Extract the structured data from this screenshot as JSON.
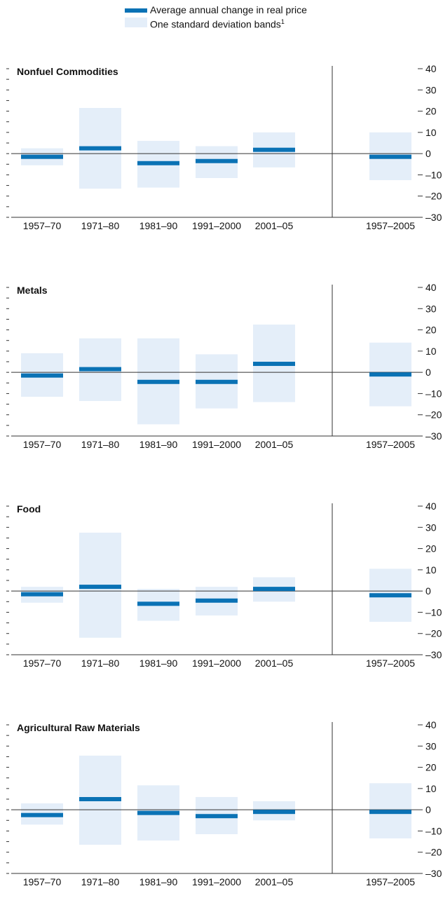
{
  "legend": {
    "line_label": "Average annual change in real price",
    "band_label": "One standard deviation bands",
    "band_footnote": "1"
  },
  "colors": {
    "average_bar": "#0a72b5",
    "band": "#e4eef9",
    "axis": "#333333"
  },
  "chart_data": [
    {
      "type": "bar",
      "title": "Nonfuel Commodities",
      "categories": [
        "1957–70",
        "1971–80",
        "1981–90",
        "1991–2000",
        "2001–05",
        "1957–2005"
      ],
      "values": [
        -1.5,
        2.5,
        -4.5,
        -3.5,
        1.8,
        -1.5
      ],
      "band_low": [
        -5.5,
        -16.5,
        -16.0,
        -11.5,
        -6.5,
        -12.5
      ],
      "band_high": [
        2.5,
        21.5,
        6.0,
        3.5,
        10.0,
        10.0
      ],
      "ylim": [
        -30,
        40
      ],
      "yticks": [
        -30,
        -20,
        -10,
        0,
        10,
        20,
        30,
        40
      ],
      "ytick_labels": [
        "–30",
        "–20",
        "–10",
        "0",
        "10",
        "20",
        "30",
        "40"
      ]
    },
    {
      "type": "bar",
      "title": "Metals",
      "categories": [
        "1957–70",
        "1971–80",
        "1981–90",
        "1991–2000",
        "2001–05",
        "1957–2005"
      ],
      "values": [
        -1.5,
        1.5,
        -4.5,
        -4.5,
        4.0,
        -1.0
      ],
      "band_low": [
        -11.5,
        -13.5,
        -24.5,
        -17.0,
        -14.0,
        -16.0
      ],
      "band_high": [
        9.0,
        16.0,
        16.0,
        8.5,
        22.5,
        14.0
      ],
      "ylim": [
        -30,
        40
      ],
      "yticks": [
        -30,
        -20,
        -10,
        0,
        10,
        20,
        30,
        40
      ],
      "ytick_labels": [
        "–30",
        "–20",
        "–10",
        "0",
        "10",
        "20",
        "30",
        "40"
      ]
    },
    {
      "type": "bar",
      "title": "Food",
      "categories": [
        "1957–70",
        "1971–80",
        "1981–90",
        "1991–2000",
        "2001–05",
        "1957–2005"
      ],
      "values": [
        -1.5,
        2.0,
        -6.0,
        -4.5,
        1.0,
        -2.0
      ],
      "band_low": [
        -5.5,
        -22.0,
        -14.0,
        -11.5,
        -5.0,
        -14.5
      ],
      "band_high": [
        2.0,
        27.5,
        1.0,
        2.0,
        6.5,
        10.5
      ],
      "ylim": [
        -30,
        40
      ],
      "yticks": [
        -30,
        -20,
        -10,
        0,
        10,
        20,
        30,
        40
      ],
      "ytick_labels": [
        "–30",
        "–20",
        "–10",
        "0",
        "10",
        "20",
        "30",
        "40"
      ]
    },
    {
      "type": "bar",
      "title": "Agricultural Raw Materials",
      "categories": [
        "1957–70",
        "1971–80",
        "1981–90",
        "1991–2000",
        "2001–05",
        "1957–2005"
      ],
      "values": [
        -2.5,
        5.0,
        -1.5,
        -3.0,
        -1.0,
        -1.0
      ],
      "band_low": [
        -7.0,
        -16.5,
        -14.5,
        -11.5,
        -5.0,
        -13.5
      ],
      "band_high": [
        3.0,
        25.5,
        11.5,
        6.0,
        4.0,
        12.5
      ],
      "ylim": [
        -30,
        40
      ],
      "yticks": [
        -30,
        -20,
        -10,
        0,
        10,
        20,
        30,
        40
      ],
      "ytick_labels": [
        "–30",
        "–20",
        "–10",
        "0",
        "10",
        "20",
        "30",
        "40"
      ]
    }
  ]
}
